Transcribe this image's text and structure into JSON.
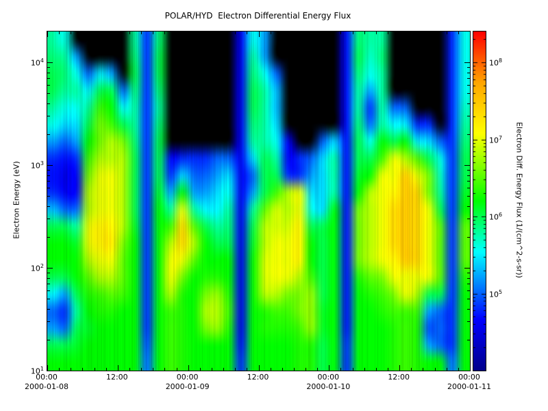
{
  "chart_data": {
    "type": "heatmap",
    "title": "POLAR/HYD  Electron Differential Energy Flux",
    "xlabel": "",
    "ylabel": "Electron Energy (eV)",
    "colorbar_label": "Electron Diff. Energy Flux (1/(cm^2-s-sr))",
    "x_axis": {
      "start": "2000-01-08 00:00",
      "end": "2000-01-11 00:00",
      "total_hours": 72,
      "minor_tick_hours": 2,
      "major_ticks": [
        {
          "hour": 0,
          "time": "00:00",
          "date": "2000-01-08"
        },
        {
          "hour": 12,
          "time": "12:00",
          "date": ""
        },
        {
          "hour": 24,
          "time": "00:00",
          "date": "2000-01-09"
        },
        {
          "hour": 36,
          "time": "12:00",
          "date": ""
        },
        {
          "hour": 48,
          "time": "00:00",
          "date": "2000-01-10"
        },
        {
          "hour": 60,
          "time": "12:00",
          "date": ""
        },
        {
          "hour": 72,
          "time": "00:00",
          "date": "2000-01-11"
        }
      ]
    },
    "y_axis": {
      "scale": "log",
      "min_exp": 1,
      "max_exp": 4.3,
      "major_tick_exponents": [
        1,
        2,
        3,
        4
      ]
    },
    "flux_axis": {
      "scale": "log",
      "min_exp": 4.0,
      "max_exp": 8.4,
      "colorbar_tick_exponents": [
        5,
        6,
        7,
        8
      ]
    },
    "colormap": [
      {
        "t": 0.0,
        "c": "#00008B"
      },
      {
        "t": 0.15,
        "c": "#0000FF"
      },
      {
        "t": 0.35,
        "c": "#00FFFF"
      },
      {
        "t": 0.5,
        "c": "#00FF00"
      },
      {
        "t": 0.7,
        "c": "#FFFF00"
      },
      {
        "t": 0.85,
        "c": "#FFA500"
      },
      {
        "t": 1.0,
        "c": "#FF0000"
      }
    ],
    "no_data_value": 0,
    "no_data_color": "#000000",
    "grid": {
      "time_bin_hours": 2,
      "rows_per_column": 20,
      "row0_is_lowest_energy": true,
      "columns_log10_flux": [
        [
          6.2,
          6.0,
          5.2,
          5.0,
          5.5,
          6.0,
          6.2,
          6.2,
          6.0,
          5.3,
          4.8,
          4.7,
          4.8,
          5.2,
          5.6,
          5.8,
          6.0,
          6.0,
          5.9,
          5.8
        ],
        [
          6.2,
          6.0,
          5.0,
          4.8,
          5.2,
          6.0,
          6.2,
          6.2,
          6.0,
          5.0,
          4.6,
          4.5,
          4.7,
          5.0,
          5.4,
          5.6,
          5.8,
          5.9,
          5.8,
          5.6
        ],
        [
          6.2,
          6.1,
          6.0,
          5.8,
          6.0,
          6.2,
          6.2,
          6.1,
          5.8,
          5.0,
          4.6,
          4.6,
          4.8,
          5.2,
          5.4,
          5.6,
          5.8,
          5.6,
          5.2,
          0
        ],
        [
          6.2,
          6.2,
          6.1,
          6.2,
          6.3,
          6.5,
          6.8,
          7.0,
          7.0,
          6.8,
          6.8,
          6.6,
          6.4,
          6.2,
          6.0,
          5.8,
          5.5,
          5.0,
          0,
          0
        ],
        [
          6.2,
          6.2,
          6.2,
          6.3,
          6.4,
          6.8,
          7.0,
          7.2,
          7.2,
          7.0,
          7.0,
          7.0,
          6.8,
          6.6,
          6.6,
          6.4,
          6.0,
          5.5,
          0,
          0
        ],
        [
          6.2,
          6.2,
          6.2,
          6.3,
          6.5,
          6.8,
          7.0,
          7.3,
          7.2,
          7.0,
          7.0,
          7.0,
          6.8,
          6.8,
          6.4,
          6.2,
          6.0,
          5.2,
          0,
          0
        ],
        [
          6.2,
          6.2,
          6.2,
          6.2,
          6.4,
          6.5,
          6.5,
          6.6,
          6.8,
          6.8,
          6.8,
          6.8,
          6.8,
          6.6,
          6.0,
          5.5,
          5.0,
          0,
          0,
          0
        ],
        [
          6.2,
          6.2,
          6.2,
          6.2,
          6.2,
          6.2,
          6.2,
          6.2,
          6.1,
          6.0,
          6.0,
          6.0,
          6.0,
          5.9,
          5.8,
          5.8,
          5.9,
          6.0,
          5.9,
          5.8
        ],
        [
          5.0,
          4.9,
          4.8,
          4.8,
          4.8,
          4.8,
          4.8,
          4.8,
          4.8,
          4.8,
          4.8,
          4.8,
          4.8,
          4.8,
          4.8,
          4.8,
          4.8,
          4.8,
          4.8,
          4.8
        ],
        [
          6.2,
          6.2,
          6.2,
          6.2,
          6.2,
          6.2,
          6.2,
          6.2,
          6.2,
          6.2,
          6.1,
          6.0,
          6.0,
          6.0,
          5.9,
          5.8,
          5.9,
          6.0,
          6.0,
          5.9
        ],
        [
          6.4,
          6.4,
          6.4,
          6.4,
          6.8,
          7.0,
          7.0,
          6.8,
          6.4,
          5.8,
          5.2,
          4.8,
          4.6,
          0,
          0,
          0,
          0,
          0,
          0,
          0
        ],
        [
          6.3,
          6.3,
          6.3,
          6.3,
          6.3,
          6.6,
          7.0,
          7.4,
          7.4,
          7.0,
          6.2,
          5.4,
          4.8,
          0,
          0,
          0,
          0,
          0,
          0,
          0
        ],
        [
          6.2,
          6.2,
          6.2,
          6.2,
          6.2,
          6.2,
          6.5,
          6.8,
          6.5,
          5.8,
          5.2,
          5.0,
          4.8,
          0,
          0,
          0,
          0,
          0,
          0,
          0
        ],
        [
          6.2,
          6.2,
          6.6,
          6.8,
          6.6,
          6.3,
          6.2,
          6.2,
          6.0,
          5.5,
          5.2,
          5.0,
          4.8,
          0,
          0,
          0,
          0,
          0,
          0,
          0
        ],
        [
          6.2,
          6.2,
          6.7,
          6.8,
          6.7,
          6.3,
          6.2,
          6.0,
          5.8,
          5.5,
          5.4,
          5.2,
          5.0,
          0,
          0,
          0,
          0,
          0,
          0,
          0
        ],
        [
          6.2,
          6.2,
          6.3,
          6.4,
          6.3,
          6.2,
          6.2,
          6.0,
          5.9,
          5.8,
          5.6,
          5.4,
          5.0,
          0,
          0,
          0,
          0,
          0,
          0,
          0
        ],
        [
          4.8,
          4.7,
          4.6,
          4.6,
          4.6,
          4.6,
          4.6,
          4.6,
          4.6,
          4.6,
          4.6,
          4.6,
          4.6,
          4.6,
          4.6,
          4.6,
          4.6,
          4.6,
          4.6,
          4.6
        ],
        [
          6.2,
          6.2,
          6.2,
          6.2,
          6.2,
          6.2,
          6.2,
          6.1,
          6.0,
          5.8,
          5.2,
          5.0,
          5.4,
          5.8,
          5.9,
          6.0,
          6.0,
          5.9,
          5.8,
          5.6
        ],
        [
          6.2,
          6.2,
          6.3,
          6.3,
          6.8,
          6.9,
          6.9,
          6.8,
          6.8,
          6.5,
          6.0,
          6.0,
          6.0,
          5.8,
          5.8,
          5.8,
          5.8,
          5.6,
          5.2,
          5.2
        ],
        [
          6.2,
          6.2,
          6.3,
          6.4,
          6.8,
          7.0,
          7.0,
          7.0,
          6.9,
          6.9,
          6.4,
          6.0,
          5.8,
          5.6,
          5.4,
          5.3,
          5.3,
          5.0,
          0,
          0
        ],
        [
          6.2,
          6.2,
          6.3,
          6.4,
          6.6,
          7.0,
          7.0,
          7.0,
          6.9,
          6.8,
          6.8,
          4.8,
          4.6,
          4.6,
          0,
          0,
          0,
          0,
          0,
          0
        ],
        [
          6.3,
          6.3,
          6.4,
          6.6,
          6.6,
          6.8,
          7.2,
          7.2,
          7.2,
          7.0,
          7.0,
          4.8,
          4.8,
          0,
          0,
          0,
          0,
          0,
          0,
          0
        ],
        [
          6.3,
          6.3,
          6.7,
          6.7,
          6.7,
          6.4,
          6.2,
          6.2,
          6.0,
          5.6,
          5.4,
          5.2,
          5.0,
          0,
          0,
          0,
          0,
          0,
          0,
          0
        ],
        [
          6.0,
          6.0,
          6.1,
          6.1,
          6.0,
          6.0,
          6.0,
          6.0,
          6.0,
          5.4,
          5.4,
          5.4,
          5.4,
          5.0,
          0,
          0,
          0,
          0,
          0,
          0
        ],
        [
          6.2,
          6.2,
          6.2,
          6.2,
          6.2,
          6.2,
          6.2,
          6.2,
          6.2,
          6.2,
          5.8,
          5.8,
          5.8,
          5.4,
          0,
          0,
          0,
          0,
          0,
          0
        ],
        [
          4.8,
          4.8,
          4.7,
          4.7,
          4.7,
          4.7,
          4.7,
          4.7,
          4.7,
          4.7,
          4.7,
          4.7,
          4.7,
          4.7,
          4.7,
          4.7,
          4.7,
          4.7,
          4.7,
          4.7
        ],
        [
          6.2,
          6.2,
          6.2,
          6.2,
          6.2,
          6.3,
          6.6,
          6.6,
          6.6,
          6.6,
          6.2,
          6.1,
          6.0,
          6.0,
          5.9,
          5.8,
          5.8,
          5.9,
          6.0,
          5.9
        ],
        [
          6.2,
          6.2,
          6.2,
          6.2,
          6.3,
          6.5,
          6.8,
          6.8,
          6.8,
          6.8,
          6.8,
          6.2,
          6.0,
          5.6,
          5.0,
          4.8,
          5.2,
          5.6,
          5.7,
          5.8
        ],
        [
          6.2,
          6.2,
          6.2,
          6.3,
          6.4,
          6.6,
          7.0,
          7.0,
          7.0,
          7.0,
          7.0,
          7.0,
          6.4,
          6.2,
          5.8,
          5.8,
          5.8,
          5.8,
          5.9,
          5.8
        ],
        [
          6.3,
          6.3,
          6.3,
          6.4,
          6.6,
          7.0,
          7.2,
          7.4,
          7.4,
          7.4,
          7.2,
          7.0,
          7.0,
          6.0,
          5.5,
          5.0,
          0,
          0,
          0,
          0
        ],
        [
          6.4,
          6.4,
          6.4,
          6.4,
          7.0,
          7.0,
          7.5,
          7.5,
          7.5,
          7.5,
          7.5,
          7.5,
          6.8,
          6.2,
          5.5,
          5.0,
          0,
          0,
          0,
          0
        ],
        [
          6.3,
          6.3,
          6.3,
          6.4,
          6.8,
          7.0,
          7.4,
          7.4,
          7.4,
          7.4,
          7.4,
          7.0,
          6.5,
          5.5,
          4.8,
          0,
          0,
          0,
          0,
          0
        ],
        [
          6.2,
          5.2,
          4.9,
          5.2,
          6.0,
          7.0,
          7.0,
          7.0,
          7.0,
          7.0,
          6.6,
          6.6,
          6.0,
          5.4,
          4.8,
          0,
          0,
          0,
          0,
          0
        ],
        [
          6.2,
          5.0,
          5.0,
          5.0,
          6.0,
          6.5,
          6.5,
          6.5,
          6.5,
          6.0,
          5.8,
          5.7,
          5.6,
          5.0,
          0,
          0,
          0,
          0,
          0,
          0
        ],
        [
          5.0,
          4.8,
          4.8,
          4.8,
          4.8,
          4.8,
          4.8,
          4.8,
          4.8,
          4.8,
          4.8,
          4.8,
          4.8,
          4.8,
          4.8,
          4.8,
          4.8,
          4.8,
          4.8,
          4.8
        ],
        [
          6.2,
          6.2,
          6.2,
          6.2,
          6.2,
          6.3,
          6.5,
          6.5,
          6.5,
          6.2,
          6.1,
          6.0,
          6.0,
          5.9,
          5.8,
          5.7,
          5.6,
          5.6,
          5.6,
          5.6
        ]
      ]
    }
  }
}
